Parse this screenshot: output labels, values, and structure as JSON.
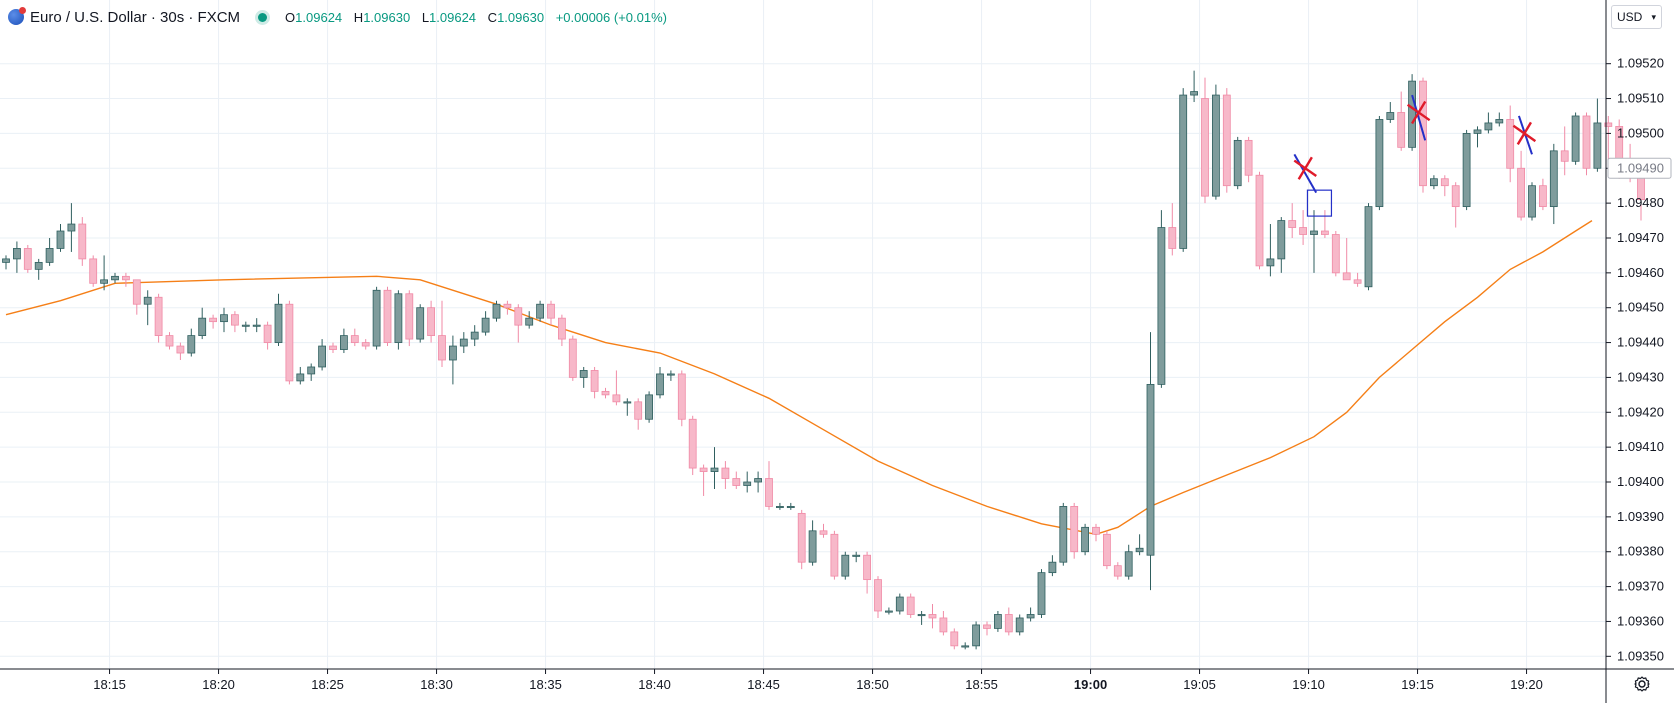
{
  "legend": {
    "title": "Euro / U.S. Dollar · 30s · FXCM",
    "open": "1.09624",
    "high": "1.09630",
    "low": "1.09624",
    "close": "1.09630",
    "change": "+0.00006 (+0.01%)",
    "o_key": "O",
    "h_key": "H",
    "l_key": "L",
    "c_key": "C"
  },
  "currency": "USD",
  "icons": {
    "symbol": "currency-flag-icon",
    "status": "market-status-dot-icon",
    "settings": "settings-gear-icon"
  },
  "colors": {
    "up": "#7f9c9c",
    "up_border": "#2f5f5f",
    "down": "#f7b8c9",
    "down_border": "#f08aa6",
    "ma": "#f57f17",
    "grid": "#eaf0f6",
    "marker_red": "#e01b2a",
    "marker_blue": "#2430c8"
  },
  "chart_data": {
    "type": "candlestick",
    "y_range": [
      1.09345,
      1.09528
    ],
    "y_ticks": [
      "1.09520",
      "1.09510",
      "1.09500",
      "1.09490",
      "1.09480",
      "1.09470",
      "1.09460",
      "1.09450",
      "1.09440",
      "1.09430",
      "1.09420",
      "1.09410",
      "1.09400",
      "1.09390",
      "1.09380",
      "1.09370",
      "1.09360",
      "1.09350"
    ],
    "last_price_label": "1.09490",
    "x_ticks": [
      {
        "label": "18:15",
        "idx": 9.5,
        "bold": false
      },
      {
        "label": "18:20",
        "idx": 19.5,
        "bold": false
      },
      {
        "label": "18:25",
        "idx": 29.5,
        "bold": false
      },
      {
        "label": "18:30",
        "idx": 39.5,
        "bold": false
      },
      {
        "label": "18:35",
        "idx": 49.5,
        "bold": false
      },
      {
        "label": "18:40",
        "idx": 59.5,
        "bold": false
      },
      {
        "label": "18:45",
        "idx": 69.5,
        "bold": false
      },
      {
        "label": "18:50",
        "idx": 79.5,
        "bold": false
      },
      {
        "label": "18:55",
        "idx": 89.5,
        "bold": false
      },
      {
        "label": "19:00",
        "idx": 99.5,
        "bold": true
      },
      {
        "label": "19:05",
        "idx": 109.5,
        "bold": false
      },
      {
        "label": "19:10",
        "idx": 119.5,
        "bold": false
      },
      {
        "label": "19:15",
        "idx": 129.5,
        "bold": false
      },
      {
        "label": "19:20",
        "idx": 139.5,
        "bold": false
      }
    ],
    "candles": [
      [
        1.09463,
        1.09465,
        1.09461,
        1.09464
      ],
      [
        1.09464,
        1.09469,
        1.0946,
        1.09467
      ],
      [
        1.09467,
        1.09468,
        1.0946,
        1.09461
      ],
      [
        1.09461,
        1.09464,
        1.09458,
        1.09463
      ],
      [
        1.09463,
        1.0947,
        1.09462,
        1.09467
      ],
      [
        1.09467,
        1.09474,
        1.09466,
        1.09472
      ],
      [
        1.09472,
        1.0948,
        1.09466,
        1.09474
      ],
      [
        1.09474,
        1.09476,
        1.09462,
        1.09464
      ],
      [
        1.09464,
        1.09465,
        1.09456,
        1.09457
      ],
      [
        1.09457,
        1.09465,
        1.09455,
        1.09458
      ],
      [
        1.09458,
        1.0946,
        1.09457,
        1.09459
      ],
      [
        1.09459,
        1.0946,
        1.09456,
        1.09458
      ],
      [
        1.09458,
        1.09458,
        1.09448,
        1.09451
      ],
      [
        1.09451,
        1.09455,
        1.09445,
        1.09453
      ],
      [
        1.09453,
        1.09454,
        1.0944,
        1.09442
      ],
      [
        1.09442,
        1.09443,
        1.09438,
        1.09439
      ],
      [
        1.09439,
        1.0944,
        1.09435,
        1.09437
      ],
      [
        1.09437,
        1.09444,
        1.09436,
        1.09442
      ],
      [
        1.09442,
        1.0945,
        1.09441,
        1.09447
      ],
      [
        1.09447,
        1.09448,
        1.09444,
        1.09446
      ],
      [
        1.09446,
        1.0945,
        1.09443,
        1.09448
      ],
      [
        1.09448,
        1.09449,
        1.09443,
        1.09445
      ],
      [
        1.09445,
        1.09446,
        1.09443,
        1.09445
      ],
      [
        1.09445,
        1.09447,
        1.09443,
        1.09445
      ],
      [
        1.09445,
        1.09446,
        1.09438,
        1.0944
      ],
      [
        1.0944,
        1.09454,
        1.09439,
        1.09451
      ],
      [
        1.09451,
        1.09452,
        1.09428,
        1.09429
      ],
      [
        1.09429,
        1.09433,
        1.09428,
        1.09431
      ],
      [
        1.09431,
        1.09434,
        1.09429,
        1.09433
      ],
      [
        1.09433,
        1.09441,
        1.09432,
        1.09439
      ],
      [
        1.09439,
        1.0944,
        1.09437,
        1.09438
      ],
      [
        1.09438,
        1.09444,
        1.09437,
        1.09442
      ],
      [
        1.09442,
        1.09444,
        1.09439,
        1.0944
      ],
      [
        1.0944,
        1.09441,
        1.09438,
        1.09439
      ],
      [
        1.09439,
        1.09456,
        1.09438,
        1.09455
      ],
      [
        1.09455,
        1.09456,
        1.09439,
        1.0944
      ],
      [
        1.0944,
        1.09455,
        1.09438,
        1.09454
      ],
      [
        1.09454,
        1.09455,
        1.09439,
        1.09441
      ],
      [
        1.09441,
        1.09451,
        1.0944,
        1.0945
      ],
      [
        1.0945,
        1.09452,
        1.0944,
        1.09442
      ],
      [
        1.09442,
        1.09452,
        1.09433,
        1.09435
      ],
      [
        1.09435,
        1.09442,
        1.09428,
        1.09439
      ],
      [
        1.09439,
        1.09443,
        1.09437,
        1.09441
      ],
      [
        1.09441,
        1.09445,
        1.09439,
        1.09443
      ],
      [
        1.09443,
        1.09449,
        1.09442,
        1.09447
      ],
      [
        1.09447,
        1.09452,
        1.09446,
        1.09451
      ],
      [
        1.09451,
        1.09452,
        1.09448,
        1.0945
      ],
      [
        1.0945,
        1.09451,
        1.0944,
        1.09445
      ],
      [
        1.09445,
        1.09449,
        1.09444,
        1.09447
      ],
      [
        1.09447,
        1.09452,
        1.09446,
        1.09451
      ],
      [
        1.09451,
        1.09452,
        1.09445,
        1.09447
      ],
      [
        1.09447,
        1.09448,
        1.09439,
        1.09441
      ],
      [
        1.09441,
        1.09442,
        1.09429,
        1.0943
      ],
      [
        1.0943,
        1.09433,
        1.09427,
        1.09432
      ],
      [
        1.09432,
        1.09433,
        1.09424,
        1.09426
      ],
      [
        1.09426,
        1.09427,
        1.09424,
        1.09425
      ],
      [
        1.09425,
        1.09432,
        1.09422,
        1.09423
      ],
      [
        1.09423,
        1.09424,
        1.09419,
        1.09423
      ],
      [
        1.09423,
        1.09424,
        1.09415,
        1.09418
      ],
      [
        1.09418,
        1.09426,
        1.09417,
        1.09425
      ],
      [
        1.09425,
        1.09433,
        1.09424,
        1.09431
      ],
      [
        1.09431,
        1.09432,
        1.09429,
        1.09431
      ],
      [
        1.09431,
        1.09432,
        1.09416,
        1.09418
      ],
      [
        1.09418,
        1.09419,
        1.09402,
        1.09404
      ],
      [
        1.09404,
        1.09405,
        1.09396,
        1.09403
      ],
      [
        1.09403,
        1.0941,
        1.09398,
        1.09404
      ],
      [
        1.09404,
        1.09406,
        1.09398,
        1.09401
      ],
      [
        1.09401,
        1.09403,
        1.09398,
        1.09399
      ],
      [
        1.09399,
        1.09403,
        1.09397,
        1.094
      ],
      [
        1.094,
        1.09403,
        1.09397,
        1.09401
      ],
      [
        1.09401,
        1.09406,
        1.09392,
        1.09393
      ],
      [
        1.09393,
        1.09394,
        1.09392,
        1.09393
      ],
      [
        1.09393,
        1.09394,
        1.09392,
        1.09393
      ],
      [
        1.09391,
        1.09392,
        1.09375,
        1.09377
      ],
      [
        1.09377,
        1.09389,
        1.09376,
        1.09386
      ],
      [
        1.09386,
        1.09388,
        1.09384,
        1.09385
      ],
      [
        1.09385,
        1.09386,
        1.09372,
        1.09373
      ],
      [
        1.09373,
        1.0938,
        1.09372,
        1.09379
      ],
      [
        1.09379,
        1.0938,
        1.09377,
        1.09379
      ],
      [
        1.09379,
        1.0938,
        1.09368,
        1.09372
      ],
      [
        1.09372,
        1.09373,
        1.09361,
        1.09363
      ],
      [
        1.09363,
        1.09364,
        1.09362,
        1.09363
      ],
      [
        1.09363,
        1.09368,
        1.09362,
        1.09367
      ],
      [
        1.09367,
        1.09368,
        1.09361,
        1.09362
      ],
      [
        1.09362,
        1.09363,
        1.09359,
        1.09362
      ],
      [
        1.09362,
        1.09365,
        1.09358,
        1.09361
      ],
      [
        1.09361,
        1.09363,
        1.09356,
        1.09357
      ],
      [
        1.09357,
        1.09358,
        1.09352,
        1.09353
      ],
      [
        1.09353,
        1.09354,
        1.09352,
        1.09353
      ],
      [
        1.09353,
        1.0936,
        1.09352,
        1.09359
      ],
      [
        1.09359,
        1.0936,
        1.09356,
        1.09358
      ],
      [
        1.09358,
        1.09363,
        1.09357,
        1.09362
      ],
      [
        1.09362,
        1.09364,
        1.09356,
        1.09357
      ],
      [
        1.09357,
        1.09362,
        1.09356,
        1.09361
      ],
      [
        1.09361,
        1.09364,
        1.0936,
        1.09362
      ],
      [
        1.09362,
        1.09375,
        1.09361,
        1.09374
      ],
      [
        1.09374,
        1.09379,
        1.09373,
        1.09377
      ],
      [
        1.09377,
        1.09394,
        1.09376,
        1.09393
      ],
      [
        1.09393,
        1.09394,
        1.09378,
        1.0938
      ],
      [
        1.0938,
        1.09388,
        1.09379,
        1.09387
      ],
      [
        1.09387,
        1.09388,
        1.09383,
        1.09385
      ],
      [
        1.09385,
        1.09386,
        1.09375,
        1.09376
      ],
      [
        1.09376,
        1.09377,
        1.09372,
        1.09373
      ],
      [
        1.09373,
        1.09382,
        1.09372,
        1.0938
      ],
      [
        1.0938,
        1.09385,
        1.09379,
        1.09381
      ],
      [
        1.09379,
        1.09443,
        1.09369,
        1.09428
      ],
      [
        1.09428,
        1.09478,
        1.09427,
        1.09473
      ],
      [
        1.09473,
        1.0948,
        1.09465,
        1.09467
      ],
      [
        1.09467,
        1.09513,
        1.09466,
        1.09511
      ],
      [
        1.09511,
        1.09518,
        1.09509,
        1.09512
      ],
      [
        1.0951,
        1.09516,
        1.0948,
        1.09482
      ],
      [
        1.09482,
        1.09514,
        1.09481,
        1.09511
      ],
      [
        1.09511,
        1.09513,
        1.09483,
        1.09485
      ],
      [
        1.09485,
        1.09499,
        1.09484,
        1.09498
      ],
      [
        1.09498,
        1.09499,
        1.09486,
        1.09488
      ],
      [
        1.09488,
        1.09489,
        1.09461,
        1.09462
      ],
      [
        1.09462,
        1.09474,
        1.09459,
        1.09464
      ],
      [
        1.09464,
        1.09476,
        1.0946,
        1.09475
      ],
      [
        1.09475,
        1.0948,
        1.0947,
        1.09473
      ],
      [
        1.09473,
        1.09478,
        1.09468,
        1.09471
      ],
      [
        1.09471,
        1.09478,
        1.0946,
        1.09472
      ],
      [
        1.09472,
        1.09478,
        1.0947,
        1.09471
      ],
      [
        1.09471,
        1.09472,
        1.09459,
        1.0946
      ],
      [
        1.0946,
        1.0947,
        1.09458,
        1.09458
      ],
      [
        1.09458,
        1.0946,
        1.09456,
        1.09457
      ],
      [
        1.09456,
        1.0948,
        1.09455,
        1.09479
      ],
      [
        1.09479,
        1.09505,
        1.09478,
        1.09504
      ],
      [
        1.09504,
        1.09509,
        1.09503,
        1.09506
      ],
      [
        1.09506,
        1.09512,
        1.09495,
        1.09496
      ],
      [
        1.09496,
        1.09517,
        1.09495,
        1.09515
      ],
      [
        1.09515,
        1.09516,
        1.09483,
        1.09485
      ],
      [
        1.09485,
        1.09488,
        1.09484,
        1.09487
      ],
      [
        1.09487,
        1.09488,
        1.09482,
        1.09485
      ],
      [
        1.09485,
        1.09486,
        1.09473,
        1.09479
      ],
      [
        1.09479,
        1.09501,
        1.09478,
        1.095
      ],
      [
        1.095,
        1.09502,
        1.09496,
        1.09501
      ],
      [
        1.09501,
        1.09506,
        1.095,
        1.09503
      ],
      [
        1.09503,
        1.09506,
        1.09502,
        1.09504
      ],
      [
        1.09504,
        1.09508,
        1.09486,
        1.0949
      ],
      [
        1.0949,
        1.09495,
        1.09475,
        1.09476
      ],
      [
        1.09476,
        1.09486,
        1.09475,
        1.09485
      ],
      [
        1.09485,
        1.09487,
        1.09478,
        1.09479
      ],
      [
        1.09479,
        1.09497,
        1.09474,
        1.09495
      ],
      [
        1.09495,
        1.09502,
        1.09488,
        1.09492
      ],
      [
        1.09492,
        1.09506,
        1.09491,
        1.09505
      ],
      [
        1.09505,
        1.09506,
        1.09488,
        1.0949
      ],
      [
        1.0949,
        1.0951,
        1.09489,
        1.09503
      ],
      [
        1.09503,
        1.09505,
        1.0949,
        1.09502
      ],
      [
        1.09502,
        1.09504,
        1.09487,
        1.0949
      ],
      [
        1.0949,
        1.09497,
        1.09486,
        1.09488
      ],
      [
        1.09488,
        1.09492,
        1.09475,
        1.09481
      ]
    ],
    "moving_average": [
      [
        0,
        1.09448
      ],
      [
        5,
        1.09452
      ],
      [
        10,
        1.09457
      ],
      [
        20,
        1.09458
      ],
      [
        34,
        1.09459
      ],
      [
        38,
        1.09458
      ],
      [
        45,
        1.09451
      ],
      [
        50,
        1.09445
      ],
      [
        55,
        1.0944
      ],
      [
        60,
        1.09437
      ],
      [
        65,
        1.09431
      ],
      [
        70,
        1.09424
      ],
      [
        75,
        1.09415
      ],
      [
        80,
        1.09406
      ],
      [
        85,
        1.09399
      ],
      [
        90,
        1.09393
      ],
      [
        95,
        1.09388
      ],
      [
        100,
        1.09385
      ],
      [
        102,
        1.09387
      ],
      [
        105,
        1.09393
      ],
      [
        108,
        1.09397
      ],
      [
        112,
        1.09402
      ],
      [
        116,
        1.09407
      ],
      [
        120,
        1.09413
      ],
      [
        123,
        1.0942
      ],
      [
        126,
        1.0943
      ],
      [
        129,
        1.09438
      ],
      [
        132,
        1.09446
      ],
      [
        135,
        1.09453
      ],
      [
        138,
        1.09461
      ],
      [
        141,
        1.09466
      ],
      [
        144,
        1.09472
      ],
      [
        145.5,
        1.09475
      ]
    ],
    "x_markers": [
      {
        "idx": 119.2,
        "price": 1.0949,
        "line": [
          [
            118.2,
            1.09494
          ],
          [
            120.2,
            1.09483
          ]
        ]
      },
      {
        "idx": 129.6,
        "price": 1.09506,
        "line": [
          [
            129.0,
            1.09511
          ],
          [
            130.2,
            1.09498
          ]
        ]
      },
      {
        "idx": 139.3,
        "price": 1.095,
        "line": [
          [
            138.8,
            1.09505
          ],
          [
            140.0,
            1.09494
          ]
        ]
      }
    ],
    "highlight_box": {
      "idx": 120.5,
      "price_top": 1.09482,
      "price_bottom": 1.09478
    }
  }
}
